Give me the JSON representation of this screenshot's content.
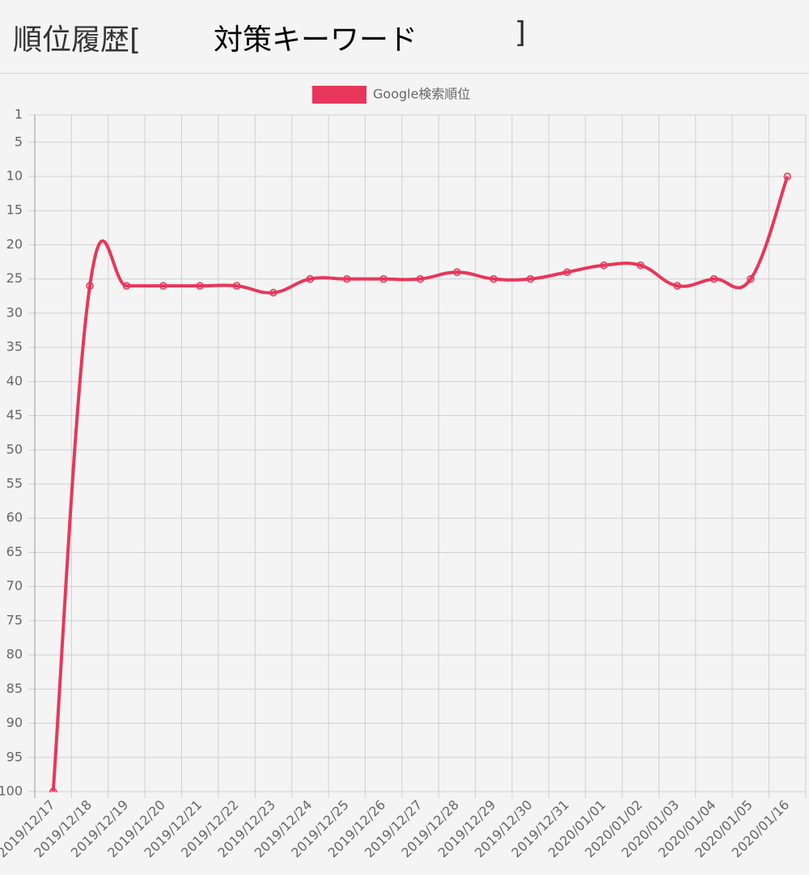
{
  "header": {
    "title": "順位履歴[",
    "keyword": "対策キーワード",
    "close": "]"
  },
  "chart_data": {
    "type": "line",
    "categories": [
      "2019/12/17",
      "2019/12/18",
      "2019/12/19",
      "2019/12/20",
      "2019/12/21",
      "2019/12/22",
      "2019/12/23",
      "2019/12/24",
      "2019/12/25",
      "2019/12/26",
      "2019/12/27",
      "2019/12/28",
      "2019/12/29",
      "2019/12/30",
      "2019/12/31",
      "2020/01/01",
      "2020/01/02",
      "2020/01/03",
      "2020/01/04",
      "2020/01/05",
      "2020/01/16"
    ],
    "series": [
      {
        "name": "Google検索順位",
        "color": "#e8365a",
        "values": [
          100,
          26,
          26,
          26,
          26,
          26,
          27,
          25,
          25,
          25,
          25,
          24,
          25,
          25,
          24,
          23,
          23,
          26,
          25,
          25,
          10
        ]
      }
    ],
    "ylim": [
      1,
      100
    ],
    "y_reversed": true,
    "yticks": [
      1,
      5,
      10,
      15,
      20,
      25,
      30,
      35,
      40,
      45,
      50,
      55,
      60,
      65,
      70,
      75,
      80,
      85,
      90,
      95,
      100
    ],
    "grid": true,
    "legend": "top"
  }
}
